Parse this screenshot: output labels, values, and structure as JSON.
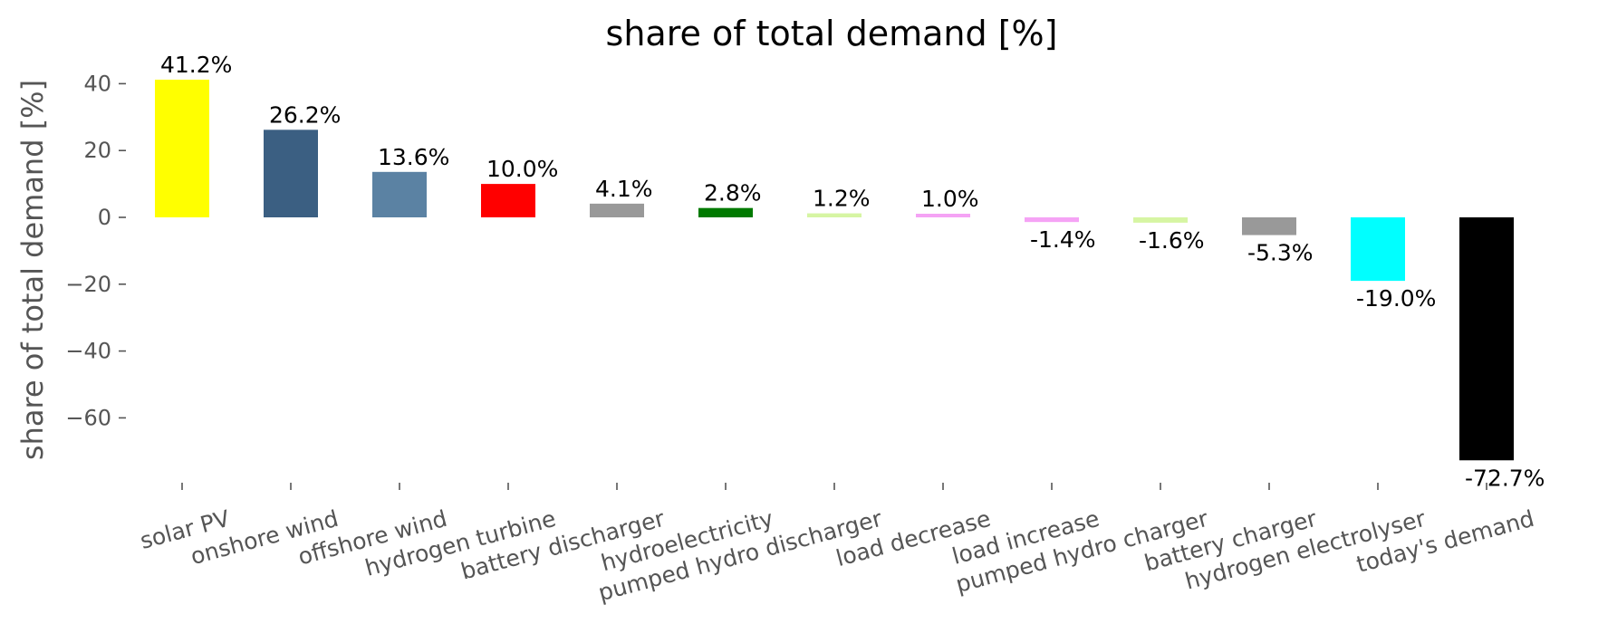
{
  "chart_data": {
    "type": "bar",
    "title": "share of total demand [%]",
    "xlabel": "",
    "ylabel": "share of total demand [%]",
    "ylim": [
      -80,
      50
    ],
    "yticks": [
      40,
      20,
      0,
      -20,
      -40,
      -60
    ],
    "ytick_labels": [
      "40",
      "20",
      "0",
      "−20",
      "−40",
      "−60"
    ],
    "grid": false,
    "categories": [
      "solar PV",
      "onshore wind",
      "offshore wind",
      "hydrogen turbine",
      "battery discharger",
      "hydroelectricity",
      "pumped hydro discharger",
      "load decrease",
      "load increase",
      "pumped hydro charger",
      "battery charger",
      "hydrogen electrolyser",
      "today's demand"
    ],
    "values": [
      41.2,
      26.2,
      13.6,
      10.0,
      4.1,
      2.8,
      1.2,
      1.0,
      -1.4,
      -1.6,
      -5.3,
      -19.0,
      -72.7
    ],
    "data_labels": [
      "41.2%",
      "26.2%",
      "13.6%",
      "10.0%",
      "4.1%",
      "2.8%",
      "1.2%",
      "1.0%",
      "-1.4%",
      "-1.6%",
      "-5.3%",
      "-19.0%",
      "-72.7%"
    ],
    "colors": [
      "#ffff00",
      "#3b5f82",
      "#5b82a3",
      "#ff0000",
      "#999999",
      "#007a00",
      "#d6f5a3",
      "#f5a3f5",
      "#f5a3f5",
      "#d6f5a3",
      "#999999",
      "#00ffff",
      "#000000"
    ]
  }
}
